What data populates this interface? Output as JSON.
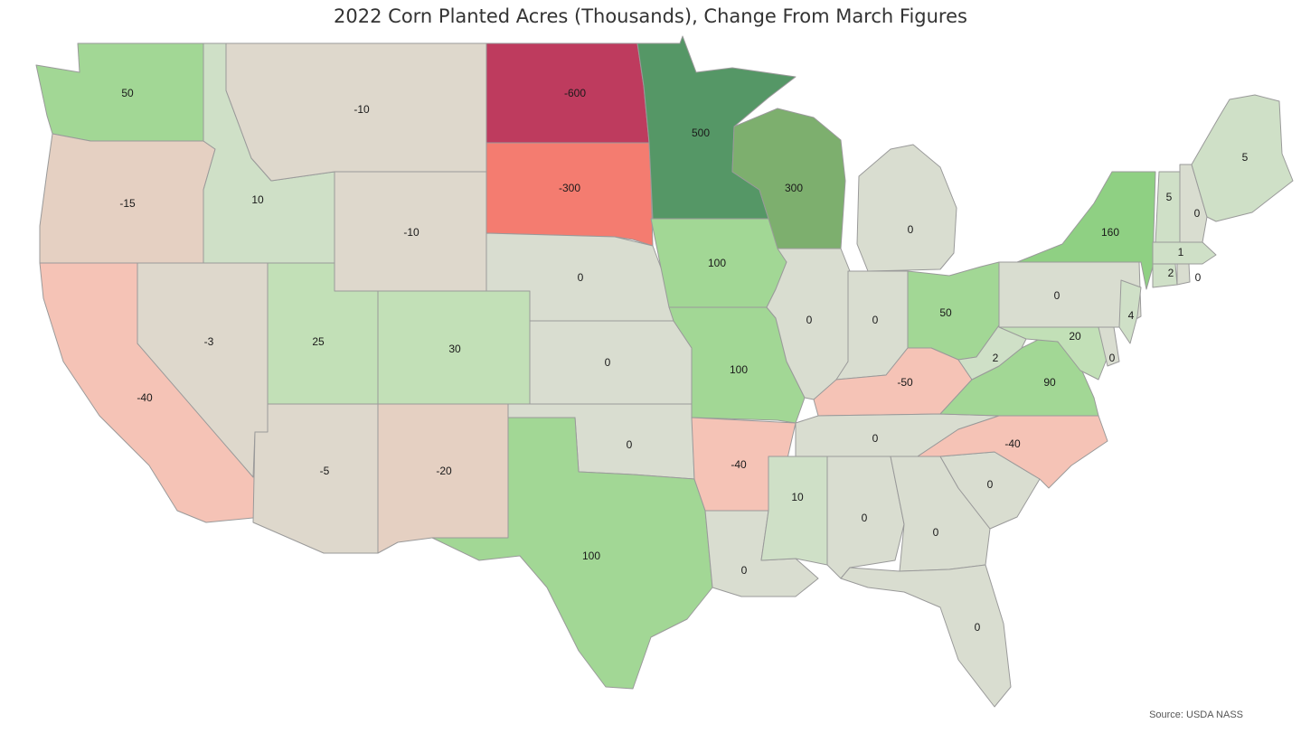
{
  "title": "2022 Corn Planted Acres (Thousands), Change From March Figures",
  "source": "Source: USDA NASS",
  "states": [
    {
      "abbr": "WA",
      "value": "50"
    },
    {
      "abbr": "OR",
      "value": "-15"
    },
    {
      "abbr": "CA",
      "value": "-40"
    },
    {
      "abbr": "ID",
      "value": "10"
    },
    {
      "abbr": "NV",
      "value": "-3"
    },
    {
      "abbr": "MT",
      "value": "-10"
    },
    {
      "abbr": "WY",
      "value": "-10"
    },
    {
      "abbr": "UT",
      "value": "25"
    },
    {
      "abbr": "AZ",
      "value": "-5"
    },
    {
      "abbr": "CO",
      "value": "30"
    },
    {
      "abbr": "NM",
      "value": "-20"
    },
    {
      "abbr": "ND",
      "value": "-600"
    },
    {
      "abbr": "SD",
      "value": "-300"
    },
    {
      "abbr": "NE",
      "value": "0"
    },
    {
      "abbr": "KS",
      "value": "0"
    },
    {
      "abbr": "OK",
      "value": "0"
    },
    {
      "abbr": "TX",
      "value": "100"
    },
    {
      "abbr": "MN",
      "value": "500"
    },
    {
      "abbr": "IA",
      "value": "100"
    },
    {
      "abbr": "MO",
      "value": "100"
    },
    {
      "abbr": "AR",
      "value": "-40"
    },
    {
      "abbr": "LA",
      "value": "0"
    },
    {
      "abbr": "WI",
      "value": "300"
    },
    {
      "abbr": "IL",
      "value": "0"
    },
    {
      "abbr": "MI",
      "value": "0"
    },
    {
      "abbr": "IN",
      "value": "0"
    },
    {
      "abbr": "OH",
      "value": "50"
    },
    {
      "abbr": "KY",
      "value": "-50"
    },
    {
      "abbr": "TN",
      "value": "0"
    },
    {
      "abbr": "MS",
      "value": "10"
    },
    {
      "abbr": "AL",
      "value": "0"
    },
    {
      "abbr": "GA",
      "value": "0"
    },
    {
      "abbr": "FL",
      "value": "0"
    },
    {
      "abbr": "SC",
      "value": "0"
    },
    {
      "abbr": "NC",
      "value": "-40"
    },
    {
      "abbr": "VA",
      "value": "90"
    },
    {
      "abbr": "WV",
      "value": "2"
    },
    {
      "abbr": "PA",
      "value": "0"
    },
    {
      "abbr": "NY",
      "value": "160"
    },
    {
      "abbr": "MD",
      "value": "20"
    },
    {
      "abbr": "DE",
      "value": "0"
    },
    {
      "abbr": "NJ",
      "value": "4"
    },
    {
      "abbr": "CT",
      "value": "2"
    },
    {
      "abbr": "RI",
      "value": "0"
    },
    {
      "abbr": "MA",
      "value": "1"
    },
    {
      "abbr": "VT",
      "value": "5"
    },
    {
      "abbr": "NH",
      "value": "0"
    },
    {
      "abbr": "ME",
      "value": "5"
    }
  ]
}
